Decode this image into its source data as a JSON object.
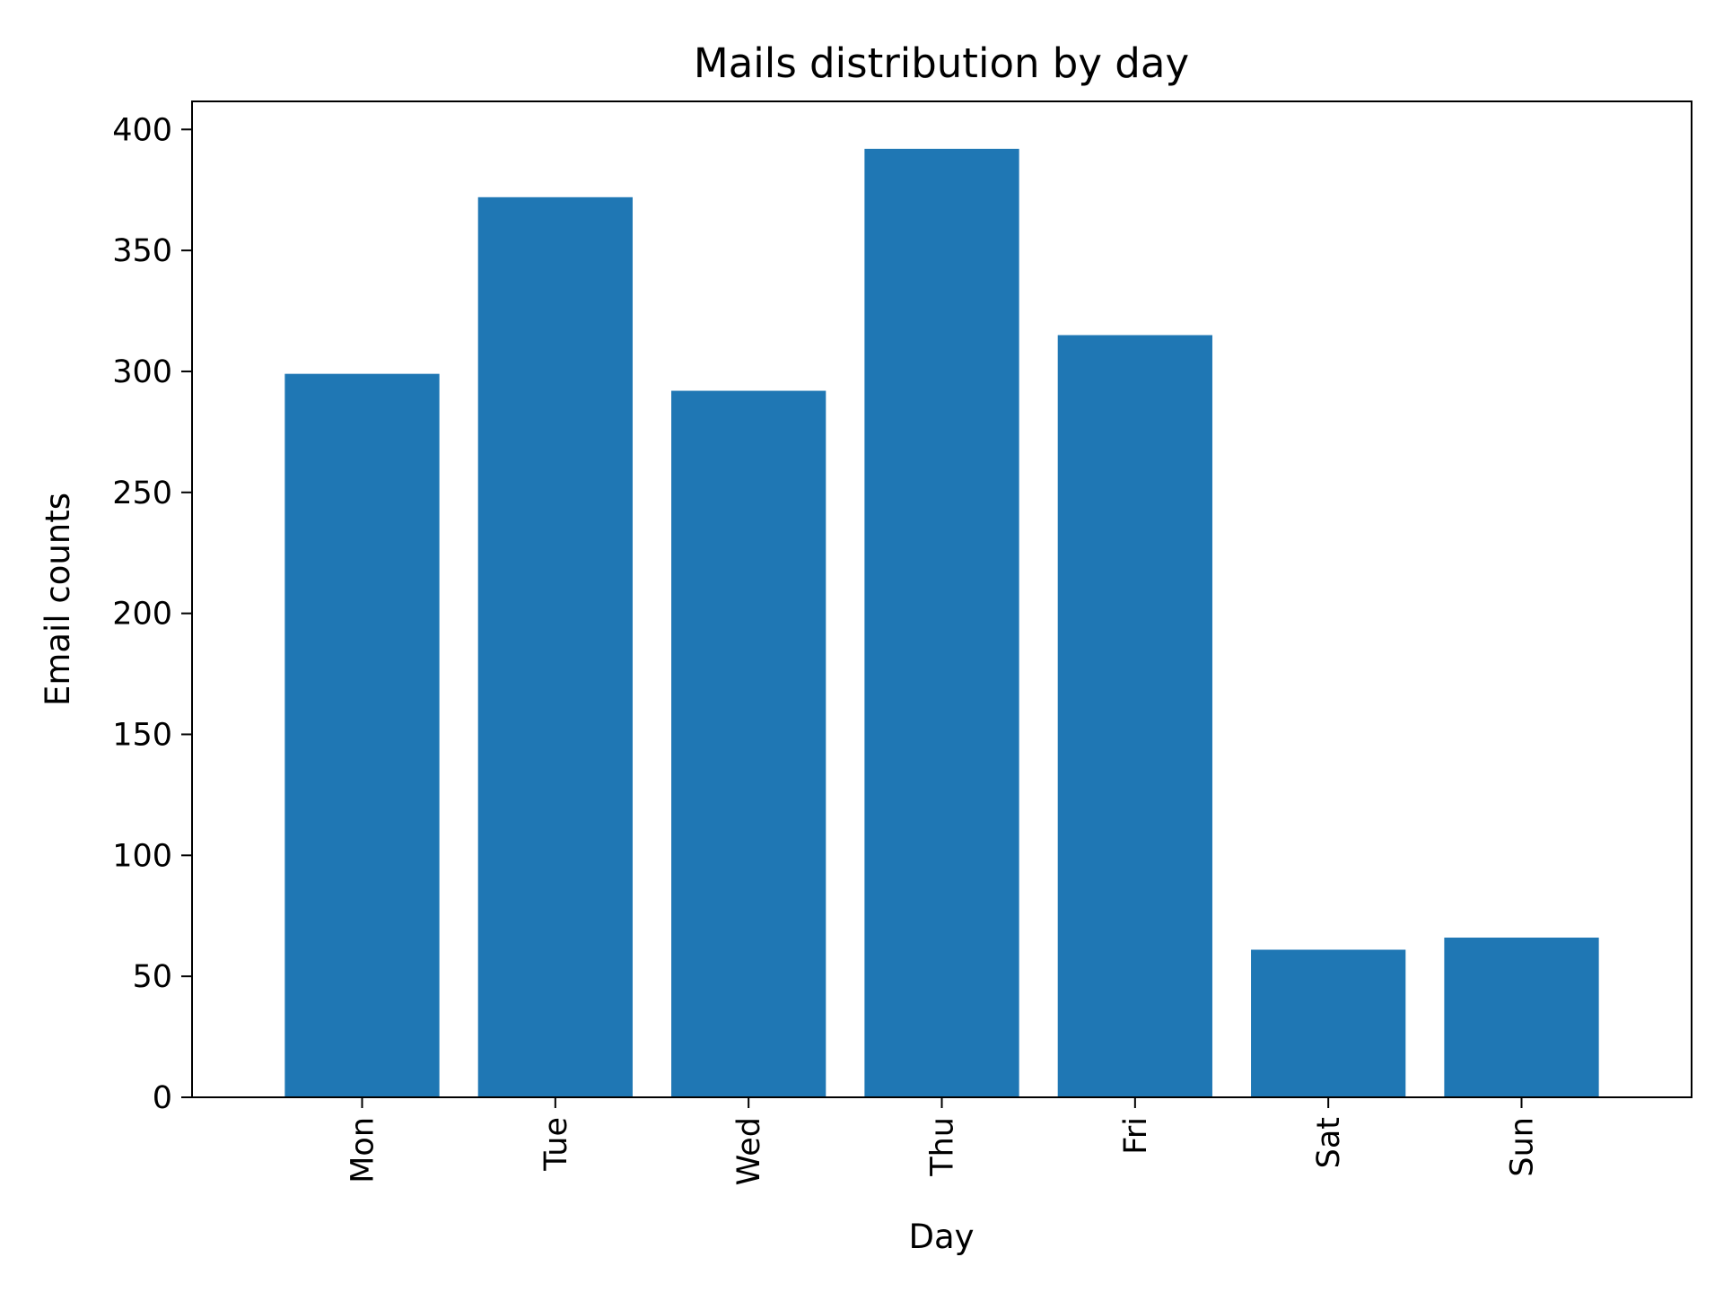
{
  "chart_data": {
    "type": "bar",
    "title": "Mails distribution by day",
    "xlabel": "Day",
    "ylabel": "Email counts",
    "categories": [
      "Mon",
      "Tue",
      "Wed",
      "Thu",
      "Fri",
      "Sat",
      "Sun"
    ],
    "values": [
      299,
      372,
      292,
      392,
      315,
      61,
      66
    ],
    "ylim": [
      0,
      411.6
    ],
    "yticks": [
      0,
      50,
      100,
      150,
      200,
      250,
      300,
      350,
      400
    ],
    "xtick_rotation": "vertical",
    "grid": false,
    "legend": "none",
    "bar_color": "#1f77b4"
  }
}
